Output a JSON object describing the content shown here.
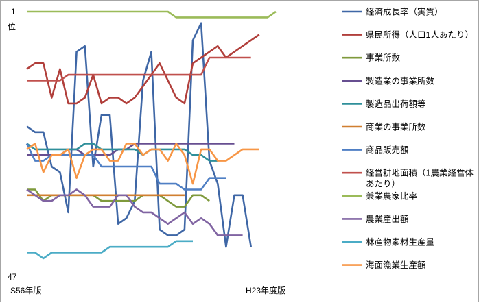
{
  "chart_data": {
    "type": "line",
    "y_axis": {
      "top_label": "1",
      "unit_label": "位",
      "bottom_label": "47",
      "inverted": true,
      "ylim": [
        1,
        47
      ]
    },
    "x_axis": {
      "start_label": "S56年版",
      "end_label": "H23年度版"
    },
    "grid": false,
    "legend_position": "right",
    "series": [
      {
        "name": "経済成長率（実質）",
        "color": "#3f67a6",
        "values": [
          21,
          22,
          22,
          28,
          29,
          36,
          8,
          7,
          28,
          19,
          19,
          38,
          37,
          34,
          13,
          8,
          39,
          40,
          40,
          39,
          6,
          3,
          27,
          31,
          42,
          33,
          33,
          42
        ]
      },
      {
        "name": "県民所得（人口1人あたり）",
        "color": "#b13f3b",
        "values": [
          11,
          10,
          10,
          16,
          11,
          17,
          17,
          16,
          12,
          17,
          16,
          16,
          17,
          16,
          14,
          12,
          10,
          13,
          16,
          17,
          10,
          9,
          8,
          7,
          9,
          8,
          7,
          6,
          5
        ]
      },
      {
        "name": "事業所数",
        "color": "#7f9a3c",
        "values": [
          32,
          32,
          34,
          33,
          33,
          33,
          33,
          33,
          33,
          34,
          34,
          34,
          34,
          34,
          33,
          33,
          33,
          34,
          35,
          35,
          33,
          33,
          34
        ]
      },
      {
        "name": "製造業の事業所数",
        "color": "#674f91",
        "values": [
          26,
          26,
          26,
          26,
          26,
          25,
          25,
          26,
          26,
          26,
          26,
          25,
          25,
          24,
          24,
          24,
          24,
          24,
          24,
          24,
          24,
          24,
          24,
          24,
          24,
          24
        ]
      },
      {
        "name": "製造品出荷額等",
        "color": "#2f8f9a",
        "values": [
          24,
          25,
          25,
          25,
          25,
          25,
          25,
          24,
          24,
          25,
          25,
          25,
          25,
          25,
          26,
          25,
          25,
          25,
          25,
          25,
          26,
          26,
          27,
          27
        ]
      },
      {
        "name": "商業の事業所数",
        "color": "#d07f30",
        "values": [
          33,
          33,
          33,
          33,
          33,
          33,
          33,
          33,
          33,
          33,
          33,
          33,
          33,
          33,
          33,
          33,
          33,
          33,
          33,
          33
        ]
      },
      {
        "name": "商品販売額",
        "color": "#4f7fc4",
        "values": [
          24,
          27,
          27,
          26,
          26,
          26,
          26,
          26,
          26,
          28,
          28,
          28,
          28,
          28,
          28,
          28,
          31,
          31,
          31,
          32,
          32,
          32,
          30,
          30,
          30
        ]
      },
      {
        "name": "経営耕地面積（1農業経営体あたり）",
        "color": "#c0504d",
        "values": [
          13,
          13,
          13,
          13,
          13,
          12,
          12,
          12,
          12,
          12,
          12,
          12,
          12,
          12,
          12,
          12,
          12,
          12,
          12,
          12,
          12,
          12,
          9,
          9,
          9,
          9,
          9,
          9
        ]
      },
      {
        "name": "兼業農家比率",
        "color": "#9bbb59",
        "values": [
          1,
          1,
          1,
          1,
          1,
          1,
          1,
          1,
          1,
          1,
          1,
          1,
          1,
          1,
          1,
          1,
          1,
          1,
          2,
          2,
          2,
          2,
          2,
          2,
          2,
          2,
          2,
          2,
          2,
          2,
          1
        ]
      },
      {
        "name": "農業産出額",
        "color": "#8064a2",
        "values": [
          32,
          33,
          34,
          34,
          33,
          33,
          32,
          33,
          35,
          35,
          35,
          33,
          33,
          35,
          36,
          36,
          37,
          38,
          37,
          36,
          38,
          37,
          38,
          40,
          40,
          40,
          40
        ]
      },
      {
        "name": "林産物素材生産量",
        "color": "#4bacc6",
        "values": [
          43,
          43,
          44,
          43,
          43,
          43,
          43,
          43,
          43,
          43,
          42,
          42,
          42,
          42,
          42,
          42,
          42,
          42,
          41,
          41,
          41
        ]
      },
      {
        "name": "海面漁業生産額",
        "color": "#f79646",
        "values": [
          25,
          24,
          29,
          26,
          26,
          25,
          30,
          26,
          25,
          25,
          27,
          27,
          24,
          24,
          26,
          25,
          25,
          27,
          24,
          26,
          31,
          25,
          25,
          27,
          27,
          26,
          25,
          25,
          25
        ]
      }
    ]
  }
}
